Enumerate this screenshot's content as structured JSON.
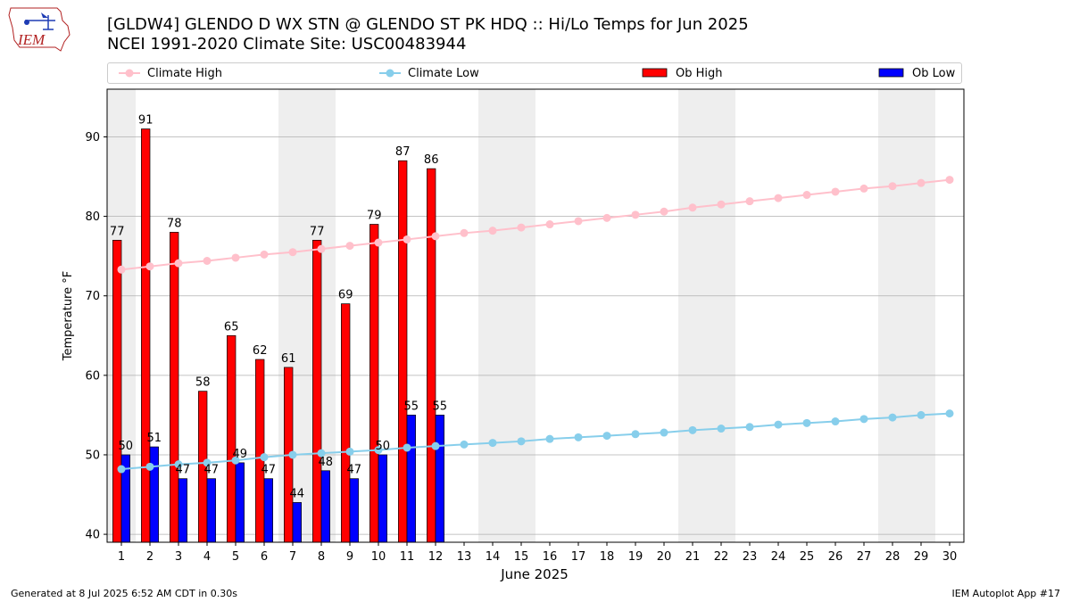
{
  "header": {
    "title_line1": "[GLDW4] GLENDO D WX STN @ GLENDO ST PK HDQ :: Hi/Lo Temps for Jun 2025",
    "title_line2": "NCEI 1991-2020 Climate Site: USC00483944",
    "logo_text": "IEM"
  },
  "legend": {
    "items": [
      {
        "label": "Climate High",
        "color": "#ffc0cb",
        "kind": "line"
      },
      {
        "label": "Climate Low",
        "color": "#87ceeb",
        "kind": "line"
      },
      {
        "label": "Ob High",
        "color": "#ff0000",
        "kind": "bar"
      },
      {
        "label": "Ob Low",
        "color": "#0000ff",
        "kind": "bar"
      }
    ]
  },
  "footer": {
    "left": "Generated at 8 Jul 2025 6:52 AM CDT in 0.30s",
    "right": "IEM Autoplot App #17"
  },
  "chart_data": {
    "type": "bar",
    "xlabel": "June 2025",
    "ylabel": "Temperature °F",
    "ylim": [
      39,
      96
    ],
    "yticks": [
      40,
      50,
      60,
      70,
      80,
      90
    ],
    "grid": true,
    "legend_position": "top",
    "categories": [
      "1",
      "2",
      "3",
      "4",
      "5",
      "6",
      "7",
      "8",
      "9",
      "10",
      "11",
      "12",
      "13",
      "14",
      "15",
      "16",
      "17",
      "18",
      "19",
      "20",
      "21",
      "22",
      "23",
      "24",
      "25",
      "26",
      "27",
      "28",
      "29",
      "30"
    ],
    "weekend_shaded_days": [
      1,
      7,
      8,
      14,
      15,
      21,
      22,
      28,
      29
    ],
    "series": [
      {
        "name": "Ob High",
        "kind": "bar",
        "color": "#ff0000",
        "values": [
          77,
          91,
          78,
          58,
          65,
          62,
          61,
          77,
          69,
          79,
          87,
          86,
          null,
          null,
          null,
          null,
          null,
          null,
          null,
          null,
          null,
          null,
          null,
          null,
          null,
          null,
          null,
          null,
          null,
          null
        ]
      },
      {
        "name": "Ob Low",
        "kind": "bar",
        "color": "#0000ff",
        "values": [
          50,
          51,
          47,
          47,
          49,
          47,
          44,
          48,
          47,
          50,
          55,
          55,
          null,
          null,
          null,
          null,
          null,
          null,
          null,
          null,
          null,
          null,
          null,
          null,
          null,
          null,
          null,
          null,
          null,
          null
        ]
      },
      {
        "name": "Climate High",
        "kind": "line",
        "color": "#ffc0cb",
        "values": [
          73.3,
          73.7,
          74.1,
          74.4,
          74.8,
          75.2,
          75.5,
          75.9,
          76.3,
          76.7,
          77.1,
          77.5,
          77.9,
          78.2,
          78.6,
          79.0,
          79.4,
          79.8,
          80.2,
          80.6,
          81.1,
          81.5,
          81.9,
          82.3,
          82.7,
          83.1,
          83.5,
          83.8,
          84.2,
          84.6
        ]
      },
      {
        "name": "Climate Low",
        "kind": "line",
        "color": "#87ceeb",
        "values": [
          48.2,
          48.5,
          48.8,
          49.0,
          49.3,
          49.7,
          50.0,
          50.2,
          50.4,
          50.6,
          50.9,
          51.1,
          51.3,
          51.5,
          51.7,
          52.0,
          52.2,
          52.4,
          52.6,
          52.8,
          53.1,
          53.3,
          53.5,
          53.8,
          54.0,
          54.2,
          54.5,
          54.7,
          55.0,
          55.2
        ]
      }
    ]
  }
}
